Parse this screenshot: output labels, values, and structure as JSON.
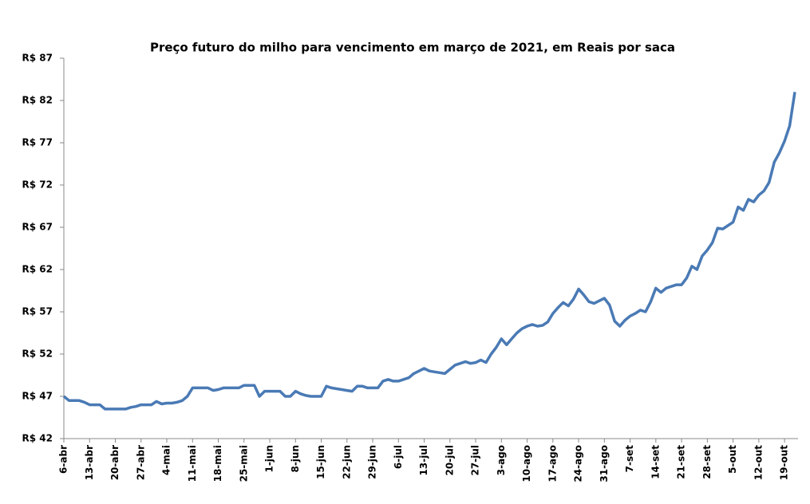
{
  "chart_data": {
    "type": "line",
    "title": "Preço futuro do milho para vencimento em março de 2021, em Reais por saca",
    "categories": [
      "6-abr",
      null,
      null,
      null,
      null,
      "13-abr",
      null,
      null,
      null,
      null,
      "20-abr",
      null,
      null,
      null,
      null,
      "27-abr",
      null,
      null,
      null,
      null,
      "4-mai",
      null,
      null,
      null,
      null,
      "11-mai",
      null,
      null,
      null,
      null,
      "18-mai",
      null,
      null,
      null,
      null,
      "25-mai",
      null,
      null,
      null,
      null,
      "1-jun",
      null,
      null,
      null,
      null,
      "8-jun",
      null,
      null,
      null,
      null,
      "15-jun",
      null,
      null,
      null,
      null,
      "22-jun",
      null,
      null,
      null,
      null,
      "29-jun",
      null,
      null,
      null,
      null,
      "6-jul",
      null,
      null,
      null,
      null,
      "13-jul",
      null,
      null,
      null,
      null,
      "20-jul",
      null,
      null,
      null,
      null,
      "27-jul",
      null,
      null,
      null,
      null,
      "3-ago",
      null,
      null,
      null,
      null,
      "10-ago",
      null,
      null,
      null,
      null,
      "17-ago",
      null,
      null,
      null,
      null,
      "24-ago",
      null,
      null,
      null,
      null,
      "31-ago",
      null,
      null,
      null,
      null,
      "7-set",
      null,
      null,
      null,
      null,
      "14-set",
      null,
      null,
      null,
      null,
      "21-set",
      null,
      null,
      null,
      null,
      "28-set",
      null,
      null,
      null,
      null,
      "5-out",
      null,
      null,
      null,
      null,
      "12-out",
      null,
      null,
      null,
      null,
      "19-out",
      null,
      null
    ],
    "series": [
      {
        "name": "Preço",
        "color": "#4a7ab5",
        "values": [
          47.0,
          46.5,
          46.5,
          46.5,
          46.3,
          46.0,
          46.0,
          46.0,
          45.5,
          45.5,
          45.5,
          45.5,
          45.5,
          45.7,
          45.8,
          46.0,
          46.0,
          46.0,
          46.4,
          46.1,
          46.2,
          46.2,
          46.3,
          46.5,
          47.0,
          48.0,
          48.0,
          48.0,
          48.0,
          47.7,
          47.8,
          48.0,
          48.0,
          48.0,
          48.0,
          48.3,
          48.3,
          48.3,
          47.0,
          47.6,
          47.6,
          47.6,
          47.6,
          47.0,
          47.0,
          47.6,
          47.3,
          47.1,
          47.0,
          47.0,
          47.0,
          48.2,
          48.0,
          47.9,
          47.8,
          47.7,
          47.6,
          48.2,
          48.2,
          48.0,
          48.0,
          48.0,
          48.8,
          49.0,
          48.8,
          48.8,
          49.0,
          49.2,
          49.7,
          50.0,
          50.3,
          50.0,
          49.9,
          49.8,
          49.7,
          50.2,
          50.7,
          50.9,
          51.1,
          50.9,
          51.0,
          51.3,
          51.0,
          52.0,
          52.8,
          53.8,
          53.1,
          53.8,
          54.5,
          55.0,
          55.3,
          55.5,
          55.3,
          55.4,
          55.8,
          56.8,
          57.5,
          58.1,
          57.7,
          58.5,
          59.7,
          59.0,
          58.2,
          58.0,
          58.3,
          58.6,
          57.8,
          55.9,
          55.3,
          56.0,
          56.5,
          56.8,
          57.2,
          57.0,
          58.2,
          59.8,
          59.3,
          59.8,
          60.0,
          60.2,
          60.2,
          61.0,
          62.4,
          62.0,
          63.6,
          64.3,
          65.2,
          66.9,
          66.8,
          67.2,
          67.6,
          69.4,
          69.0,
          70.3,
          70.0,
          70.8,
          71.3,
          72.3,
          74.7,
          75.8,
          77.2,
          79.0,
          83.0
        ]
      }
    ],
    "ylim": [
      42,
      87
    ],
    "yticks": [
      {
        "value": 42,
        "label": "R$ 42"
      },
      {
        "value": 47,
        "label": "R$ 47"
      },
      {
        "value": 52,
        "label": "R$ 52"
      },
      {
        "value": 57,
        "label": "R$ 57"
      },
      {
        "value": 62,
        "label": "R$ 62"
      },
      {
        "value": 67,
        "label": "R$ 67"
      },
      {
        "value": 72,
        "label": "R$ 72"
      },
      {
        "value": 77,
        "label": "R$ 77"
      },
      {
        "value": 82,
        "label": "R$ 82"
      },
      {
        "value": 87,
        "label": "R$ 87"
      }
    ]
  }
}
